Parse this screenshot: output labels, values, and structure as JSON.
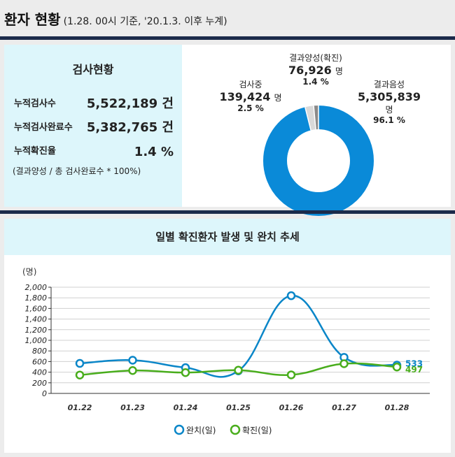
{
  "header": {
    "title": "환자 현황",
    "subtitle": "(1.28. 00시 기준, '20.1.3. 이후 누계)"
  },
  "summary": {
    "heading": "검사현황",
    "rows": [
      {
        "label": "누적검사수",
        "value": "5,522,189 건"
      },
      {
        "label": "누적검사완료수",
        "value": "5,382,765 건"
      },
      {
        "label": "누적확진율",
        "value": "1.4 %"
      }
    ],
    "formula": "(결과양성 / 총 검사완료수 * 100%)"
  },
  "donut": {
    "segments": [
      {
        "name": "결과음성",
        "value": "5,305,839",
        "unit": "명",
        "pct": "96.1 %",
        "fraction": 0.961,
        "color": "#0a8ad8"
      },
      {
        "name": "검사중",
        "value": "139,424",
        "unit": "명",
        "pct": "2.5 %",
        "fraction": 0.025,
        "color": "#d9d9d9"
      },
      {
        "name": "결과양성(확진)",
        "value": "76,926",
        "unit": "명",
        "pct": "1.4 %",
        "fraction": 0.014,
        "color": "#8a8a8a"
      }
    ]
  },
  "chart_data": {
    "type": "line",
    "title": "일별 확진환자 발생 및 완치 추세",
    "ylabel": "(명)",
    "ylim": [
      0,
      2000
    ],
    "yticks": [
      "0",
      "200",
      "400",
      "600",
      "800",
      "1,000",
      "1,200",
      "1,400",
      "1,600",
      "1,800",
      "2,000"
    ],
    "categories": [
      "01.22",
      "01.23",
      "01.24",
      "01.25",
      "01.26",
      "01.27",
      "01.28"
    ],
    "series": [
      {
        "name": "완치(일)",
        "color": "#0a86c8",
        "values": [
          565,
          625,
          485,
          425,
          1840,
          680,
          533
        ]
      },
      {
        "name": "확진(일)",
        "color": "#49ad1c",
        "values": [
          346,
          431,
          392,
          437,
          349,
          559,
          497
        ]
      }
    ],
    "end_labels": [
      "533",
      "497"
    ],
    "grid": true,
    "legend": "bottom"
  }
}
